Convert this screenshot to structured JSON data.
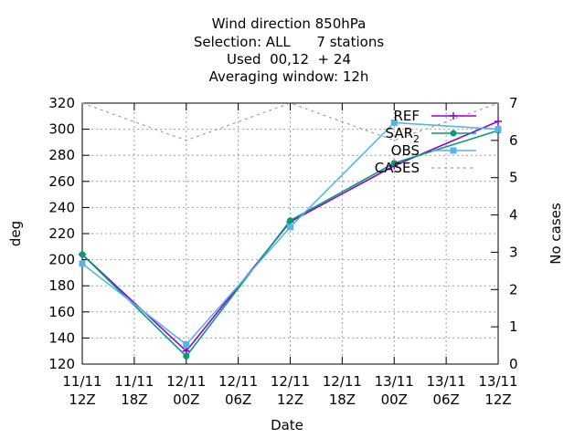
{
  "chart_data": {
    "type": "line",
    "title_lines": [
      "Wind direction 850hPa",
      "Selection: ALL      7 stations",
      "Used  00,12  + 24",
      "Averaging window: 12h"
    ],
    "xlabel": "Date",
    "ylabel": "deg",
    "y2label": "No cases",
    "x_ticks": [
      [
        "11/11",
        "12Z"
      ],
      [
        "11/11",
        "18Z"
      ],
      [
        "12/11",
        "00Z"
      ],
      [
        "12/11",
        "06Z"
      ],
      [
        "12/11",
        "12Z"
      ],
      [
        "12/11",
        "18Z"
      ],
      [
        "13/11",
        "00Z"
      ],
      [
        "13/11",
        "06Z"
      ],
      [
        "13/11",
        "12Z"
      ]
    ],
    "ylim": [
      120,
      320
    ],
    "y_ticks": [
      120,
      140,
      160,
      180,
      200,
      220,
      240,
      260,
      280,
      300,
      320
    ],
    "y2lim": [
      0,
      7
    ],
    "y2_ticks": [
      0,
      1,
      2,
      3,
      4,
      5,
      6,
      7
    ],
    "grid": true,
    "legend_position": "top-right",
    "series": [
      {
        "name": "REF",
        "color": "#9400d3",
        "axis": "y",
        "dashed": false,
        "marker": "plus",
        "x": [
          0,
          12,
          24,
          36,
          48
        ],
        "values": [
          204,
          130,
          229,
          272,
          306
        ]
      },
      {
        "name": "SAR_2",
        "color": "#009e73",
        "axis": "y",
        "dashed": false,
        "marker": "circle",
        "x": [
          0,
          12,
          24,
          36,
          48
        ],
        "values": [
          204,
          126,
          230,
          274,
          299
        ]
      },
      {
        "name": "OBS",
        "color": "#56b4e9",
        "axis": "y",
        "dashed": false,
        "marker": "square",
        "x": [
          0,
          12,
          24,
          36,
          48
        ],
        "values": [
          197,
          135,
          225,
          305,
          300
        ]
      },
      {
        "name": "CASES",
        "color": "#a0a0a0",
        "axis": "y2",
        "dashed": true,
        "marker": "none",
        "x": [
          0,
          12,
          24,
          36,
          48
        ],
        "values": [
          7,
          6,
          7,
          6,
          7
        ]
      }
    ]
  }
}
